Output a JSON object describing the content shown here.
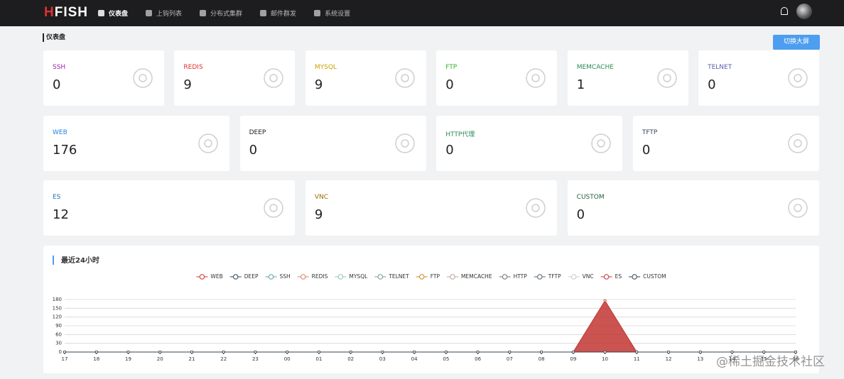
{
  "nav": {
    "logo": "HFISH",
    "items": [
      "仪表盘",
      "上钩列表",
      "分布式集群",
      "邮件群发",
      "系统设置"
    ],
    "active_item": 0
  },
  "page_title": "仪表盘",
  "switch_button": "切换大屏",
  "card_rows": [
    [
      {
        "label": "SSH",
        "count": 0,
        "color": "#9c27b0"
      },
      {
        "label": "REDIS",
        "count": 9,
        "color": "#e0302f"
      },
      {
        "label": "MYSQL",
        "count": 9,
        "color": "#c9a300"
      },
      {
        "label": "FTP",
        "count": 0,
        "color": "#2fb52f"
      },
      {
        "label": "MEMCACHE",
        "count": 1,
        "color": "#2e8b57"
      },
      {
        "label": "TELNET",
        "count": 0,
        "color": "#5b5ea6"
      }
    ],
    [
      {
        "label": "WEB",
        "count": 176,
        "color": "#1e88e5"
      },
      {
        "label": "DEEP",
        "count": 0,
        "color": "#222222"
      },
      {
        "label": "HTTP代理",
        "count": 0,
        "color": "#2e8b57"
      },
      {
        "label": "TFTP",
        "count": 0,
        "color": "#34475f"
      }
    ],
    [
      {
        "label": "ES",
        "count": 12,
        "color": "#1f6fb8"
      },
      {
        "label": "VNC",
        "count": 9,
        "color": "#9a6a00"
      },
      {
        "label": "CUSTOM",
        "count": 0,
        "color": "#1e5e3e"
      }
    ]
  ],
  "chart_data": {
    "type": "line",
    "title": "最近24小时",
    "categories": [
      "17",
      "18",
      "19",
      "20",
      "21",
      "22",
      "23",
      "00",
      "01",
      "02",
      "03",
      "04",
      "05",
      "06",
      "07",
      "08",
      "09",
      "10",
      "11",
      "12",
      "13",
      "14",
      "15",
      "16"
    ],
    "series": [
      {
        "name": "WEB",
        "color": "#c23531",
        "values": [
          0,
          0,
          0,
          0,
          0,
          0,
          0,
          0,
          0,
          0,
          0,
          0,
          0,
          0,
          0,
          0,
          0,
          176,
          0,
          0,
          0,
          0,
          0,
          0
        ]
      },
      {
        "name": "DEEP",
        "color": "#2f4554",
        "values": [
          0,
          0,
          0,
          0,
          0,
          0,
          0,
          0,
          0,
          0,
          0,
          0,
          0,
          0,
          0,
          0,
          0,
          0,
          0,
          0,
          0,
          0,
          0,
          0
        ]
      },
      {
        "name": "SSH",
        "color": "#61a0a8",
        "values": [
          0,
          0,
          0,
          0,
          0,
          0,
          0,
          0,
          0,
          0,
          0,
          0,
          0,
          0,
          0,
          0,
          0,
          0,
          0,
          0,
          0,
          0,
          0,
          0
        ]
      },
      {
        "name": "REDIS",
        "color": "#d48265",
        "values": [
          0,
          0,
          0,
          0,
          0,
          0,
          0,
          0,
          0,
          0,
          0,
          0,
          0,
          0,
          0,
          0,
          0,
          0,
          0,
          0,
          0,
          0,
          0,
          0
        ]
      },
      {
        "name": "MYSQL",
        "color": "#91c7ae",
        "values": [
          0,
          0,
          0,
          0,
          0,
          0,
          0,
          0,
          0,
          0,
          0,
          0,
          0,
          0,
          0,
          0,
          0,
          0,
          0,
          0,
          0,
          0,
          0,
          0
        ]
      },
      {
        "name": "TELNET",
        "color": "#749f83",
        "values": [
          0,
          0,
          0,
          0,
          0,
          0,
          0,
          0,
          0,
          0,
          0,
          0,
          0,
          0,
          0,
          0,
          0,
          0,
          0,
          0,
          0,
          0,
          0,
          0
        ]
      },
      {
        "name": "FTP",
        "color": "#ca8622",
        "values": [
          0,
          0,
          0,
          0,
          0,
          0,
          0,
          0,
          0,
          0,
          0,
          0,
          0,
          0,
          0,
          0,
          0,
          0,
          0,
          0,
          0,
          0,
          0,
          0
        ]
      },
      {
        "name": "MEMCACHE",
        "color": "#bda29a",
        "values": [
          0,
          0,
          0,
          0,
          0,
          0,
          0,
          0,
          0,
          0,
          0,
          0,
          0,
          0,
          0,
          0,
          0,
          0,
          0,
          0,
          0,
          0,
          0,
          0
        ]
      },
      {
        "name": "HTTP",
        "color": "#6e7074",
        "values": [
          0,
          0,
          0,
          0,
          0,
          0,
          0,
          0,
          0,
          0,
          0,
          0,
          0,
          0,
          0,
          0,
          0,
          0,
          0,
          0,
          0,
          0,
          0,
          0
        ]
      },
      {
        "name": "TFTP",
        "color": "#546570",
        "values": [
          0,
          0,
          0,
          0,
          0,
          0,
          0,
          0,
          0,
          0,
          0,
          0,
          0,
          0,
          0,
          0,
          0,
          0,
          0,
          0,
          0,
          0,
          0,
          0
        ]
      },
      {
        "name": "VNC",
        "color": "#c4ccd3",
        "values": [
          0,
          0,
          0,
          0,
          0,
          0,
          0,
          0,
          0,
          0,
          0,
          0,
          0,
          0,
          0,
          0,
          0,
          0,
          0,
          0,
          0,
          0,
          0,
          0
        ]
      },
      {
        "name": "ES",
        "color": "#c23531",
        "values": [
          0,
          0,
          0,
          0,
          0,
          0,
          0,
          0,
          0,
          0,
          0,
          0,
          0,
          0,
          0,
          0,
          0,
          0,
          0,
          0,
          0,
          0,
          0,
          0
        ]
      },
      {
        "name": "CUSTOM",
        "color": "#2f4554",
        "values": [
          0,
          0,
          0,
          0,
          0,
          0,
          0,
          0,
          0,
          0,
          0,
          0,
          0,
          0,
          0,
          0,
          0,
          0,
          0,
          0,
          0,
          0,
          0,
          0
        ]
      }
    ],
    "ylim": [
      0,
      180
    ],
    "yticks": [
      0,
      30,
      60,
      90,
      120,
      150,
      180
    ],
    "grid": true,
    "area": true
  },
  "watermark": "@稀土掘金技术社区"
}
